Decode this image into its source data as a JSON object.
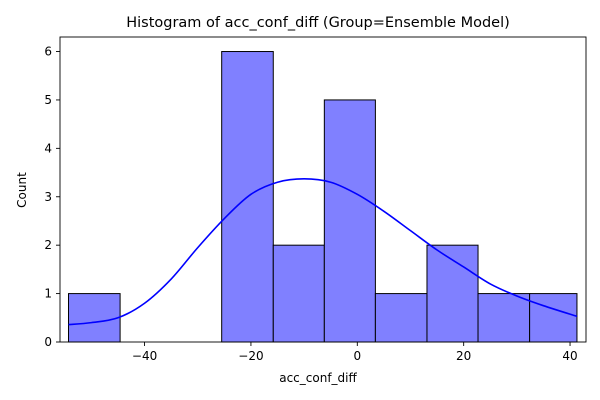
{
  "chart_data": {
    "type": "bar",
    "title": "Histogram of acc_conf_diff (Group=Ensemble Model)",
    "xlabel": "acc_conf_diff",
    "ylabel": "Count",
    "xlim": [
      -55.9,
      43.0
    ],
    "ylim": [
      0,
      6.3
    ],
    "x_ticks": [
      -40,
      -20,
      0,
      20,
      40
    ],
    "y_ticks": [
      0,
      1,
      2,
      3,
      4,
      5,
      6
    ],
    "bins": [
      {
        "x0": -54.3,
        "x1": -44.6,
        "count": 1
      },
      {
        "x0": -44.6,
        "x1": -35.0,
        "count": 0
      },
      {
        "x0": -35.0,
        "x1": -25.5,
        "count": 0
      },
      {
        "x0": -25.5,
        "x1": -15.8,
        "count": 6
      },
      {
        "x0": -15.8,
        "x1": -6.2,
        "count": 2
      },
      {
        "x0": -6.2,
        "x1": 3.4,
        "count": 5
      },
      {
        "x0": 3.4,
        "x1": 13.1,
        "count": 1
      },
      {
        "x0": 13.1,
        "x1": 22.7,
        "count": 2
      },
      {
        "x0": 22.7,
        "x1": 32.4,
        "count": 1
      },
      {
        "x0": 32.4,
        "x1": 41.3,
        "count": 1
      }
    ],
    "kde": {
      "x": [
        -54.3,
        -50,
        -45,
        -40,
        -35,
        -30,
        -25,
        -20,
        -15,
        -10,
        -5,
        0,
        5,
        10,
        15,
        20,
        25,
        30,
        35,
        41.3
      ],
      "y": [
        0.36,
        0.4,
        0.5,
        0.8,
        1.3,
        1.95,
        2.55,
        3.05,
        3.3,
        3.37,
        3.3,
        3.05,
        2.7,
        2.3,
        1.9,
        1.55,
        1.2,
        0.95,
        0.75,
        0.53
      ]
    },
    "bar_color": "#8080ff",
    "bar_edge_color": "#000000",
    "kde_color": "#0000ff",
    "grid": false,
    "legend": "none"
  }
}
